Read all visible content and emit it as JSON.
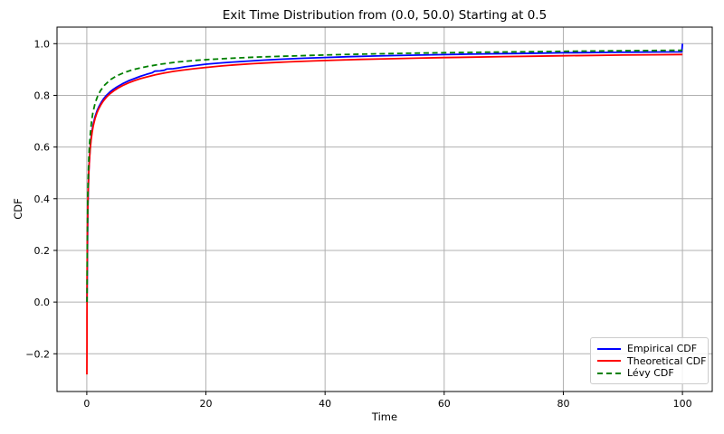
{
  "chart_data": {
    "type": "line",
    "title": "Exit Time Distribution from (0.0, 50.0) Starting at 0.5",
    "xlabel": "Time",
    "ylabel": "CDF",
    "xlim": [
      -5,
      105
    ],
    "ylim": [
      -0.346,
      1.064
    ],
    "grid": true,
    "legend_position": "lower right",
    "colors": {
      "background": "#ffffff",
      "grid": "#b0b0b0",
      "spine": "#000000",
      "text": "#000000",
      "legend_border": "#cccccc"
    },
    "xticks": [
      {
        "v": 0,
        "t": "0"
      },
      {
        "v": 20,
        "t": "20"
      },
      {
        "v": 40,
        "t": "40"
      },
      {
        "v": 60,
        "t": "60"
      },
      {
        "v": 80,
        "t": "80"
      },
      {
        "v": 100,
        "t": "100"
      }
    ],
    "yticks": [
      {
        "v": -0.2,
        "t": "−0.2"
      },
      {
        "v": 0.0,
        "t": "0.0"
      },
      {
        "v": 0.2,
        "t": "0.2"
      },
      {
        "v": 0.4,
        "t": "0.4"
      },
      {
        "v": 0.6,
        "t": "0.6"
      },
      {
        "v": 0.8,
        "t": "0.8"
      },
      {
        "v": 1.0,
        "t": "1.0"
      }
    ],
    "series": [
      {
        "name": "Empirical CDF",
        "color": "#0000ff",
        "style": "solid",
        "width": 1.8,
        "points": [
          [
            0.03,
            0.0
          ],
          [
            0.07,
            0.1
          ],
          [
            0.1,
            0.18
          ],
          [
            0.13,
            0.26
          ],
          [
            0.17,
            0.34
          ],
          [
            0.22,
            0.41
          ],
          [
            0.28,
            0.465
          ],
          [
            0.35,
            0.51
          ],
          [
            0.45,
            0.555
          ],
          [
            0.55,
            0.59
          ],
          [
            0.7,
            0.63
          ],
          [
            0.9,
            0.665
          ],
          [
            1.1,
            0.69
          ],
          [
            1.4,
            0.718
          ],
          [
            1.7,
            0.739
          ],
          [
            2.0,
            0.755
          ],
          [
            2.4,
            0.772
          ],
          [
            2.8,
            0.786
          ],
          [
            3.3,
            0.8
          ],
          [
            3.9,
            0.8135
          ],
          [
            4.5,
            0.824
          ],
          [
            5.2,
            0.8345
          ],
          [
            6.0,
            0.845
          ],
          [
            7.0,
            0.856
          ],
          [
            8.0,
            0.865
          ],
          [
            9.0,
            0.8735
          ],
          [
            10.0,
            0.881
          ],
          [
            11.0,
            0.8875
          ],
          [
            11.4,
            0.8935
          ],
          [
            12.3,
            0.8945
          ],
          [
            13.0,
            0.897
          ],
          [
            13.4,
            0.9015
          ],
          [
            14.5,
            0.903
          ],
          [
            15.5,
            0.9065
          ],
          [
            16.5,
            0.9105
          ],
          [
            18.0,
            0.915
          ],
          [
            20.0,
            0.9205
          ],
          [
            22.0,
            0.9245
          ],
          [
            24.0,
            0.928
          ],
          [
            27.0,
            0.9325
          ],
          [
            30.0,
            0.9365
          ],
          [
            33.0,
            0.94
          ],
          [
            36.5,
            0.9435
          ],
          [
            40.0,
            0.9465
          ],
          [
            44.0,
            0.9495
          ],
          [
            48.0,
            0.952
          ],
          [
            52.0,
            0.954
          ],
          [
            56.0,
            0.956
          ],
          [
            60.0,
            0.9578
          ],
          [
            64.0,
            0.9593
          ],
          [
            68.0,
            0.9607
          ],
          [
            72.0,
            0.962
          ],
          [
            76.0,
            0.9633
          ],
          [
            80.0,
            0.9645
          ],
          [
            84.0,
            0.9655
          ],
          [
            88.0,
            0.9664
          ],
          [
            92.0,
            0.9671
          ],
          [
            96.0,
            0.9677
          ],
          [
            99.9,
            0.9683
          ],
          [
            100.0,
            1.0
          ]
        ]
      },
      {
        "name": "Theoretical CDF",
        "color": "#ff0000",
        "style": "solid",
        "width": 1.8,
        "points": [
          [
            0.02,
            -0.28
          ],
          [
            0.025,
            -0.16
          ],
          [
            0.03,
            -0.06
          ],
          [
            0.04,
            0.03
          ],
          [
            0.05,
            0.1
          ],
          [
            0.07,
            0.18
          ],
          [
            0.09,
            0.24
          ],
          [
            0.12,
            0.3
          ],
          [
            0.16,
            0.36
          ],
          [
            0.21,
            0.415
          ],
          [
            0.27,
            0.462
          ],
          [
            0.34,
            0.503
          ],
          [
            0.44,
            0.548
          ],
          [
            0.55,
            0.584
          ],
          [
            0.7,
            0.622
          ],
          [
            0.9,
            0.657
          ],
          [
            1.1,
            0.683
          ],
          [
            1.4,
            0.711
          ],
          [
            1.7,
            0.732
          ],
          [
            2.0,
            0.748
          ],
          [
            2.4,
            0.765
          ],
          [
            2.8,
            0.779
          ],
          [
            3.3,
            0.793
          ],
          [
            3.9,
            0.8065
          ],
          [
            4.5,
            0.817
          ],
          [
            5.2,
            0.8275
          ],
          [
            6.0,
            0.8375
          ],
          [
            7.0,
            0.848
          ],
          [
            8.0,
            0.857
          ],
          [
            9.0,
            0.8645
          ],
          [
            10.0,
            0.871
          ],
          [
            11.5,
            0.8795
          ],
          [
            13.0,
            0.8865
          ],
          [
            14.5,
            0.8925
          ],
          [
            16.0,
            0.8975
          ],
          [
            18.0,
            0.903
          ],
          [
            20.0,
            0.908
          ],
          [
            22.5,
            0.9135
          ],
          [
            25.0,
            0.918
          ],
          [
            28.0,
            0.9225
          ],
          [
            31.0,
            0.9265
          ],
          [
            34.0,
            0.9297
          ],
          [
            38.0,
            0.9333
          ],
          [
            42.0,
            0.9363
          ],
          [
            46.0,
            0.939
          ],
          [
            50.0,
            0.9413
          ],
          [
            55.0,
            0.9438
          ],
          [
            60.0,
            0.946
          ],
          [
            65.0,
            0.948
          ],
          [
            70.0,
            0.9498
          ],
          [
            75.0,
            0.9515
          ],
          [
            80.0,
            0.953
          ],
          [
            85.0,
            0.9545
          ],
          [
            90.0,
            0.9558
          ],
          [
            95.0,
            0.957
          ],
          [
            100.0,
            0.958
          ]
        ]
      },
      {
        "name": "Lévy CDF",
        "color": "#008000",
        "style": "dashed",
        "width": 1.8,
        "points": [
          [
            0.04,
            0.0
          ],
          [
            0.06,
            0.1
          ],
          [
            0.08,
            0.19
          ],
          [
            0.1,
            0.26
          ],
          [
            0.13,
            0.34
          ],
          [
            0.17,
            0.41
          ],
          [
            0.22,
            0.47
          ],
          [
            0.28,
            0.52
          ],
          [
            0.36,
            0.57
          ],
          [
            0.45,
            0.61
          ],
          [
            0.6,
            0.655
          ],
          [
            0.8,
            0.7
          ],
          [
            1.0,
            0.73
          ],
          [
            1.4,
            0.77
          ],
          [
            1.8,
            0.796
          ],
          [
            2.3,
            0.818
          ],
          [
            3.0,
            0.84
          ],
          [
            4.0,
            0.861
          ],
          [
            5.0,
            0.8755
          ],
          [
            6.5,
            0.89
          ],
          [
            8.0,
            0.901
          ],
          [
            10.0,
            0.911
          ],
          [
            12.5,
            0.921
          ],
          [
            15.0,
            0.9285
          ],
          [
            18.0,
            0.935
          ],
          [
            21.0,
            0.9395
          ],
          [
            25.0,
            0.9445
          ],
          [
            29.0,
            0.9485
          ],
          [
            33.0,
            0.9515
          ],
          [
            38.0,
            0.955
          ],
          [
            43.0,
            0.958
          ],
          [
            48.0,
            0.9605
          ],
          [
            54.0,
            0.963
          ],
          [
            60.0,
            0.965
          ],
          [
            67.0,
            0.967
          ],
          [
            74.0,
            0.969
          ],
          [
            82.0,
            0.971
          ],
          [
            90.0,
            0.9727
          ],
          [
            100.0,
            0.9745
          ]
        ]
      }
    ]
  }
}
